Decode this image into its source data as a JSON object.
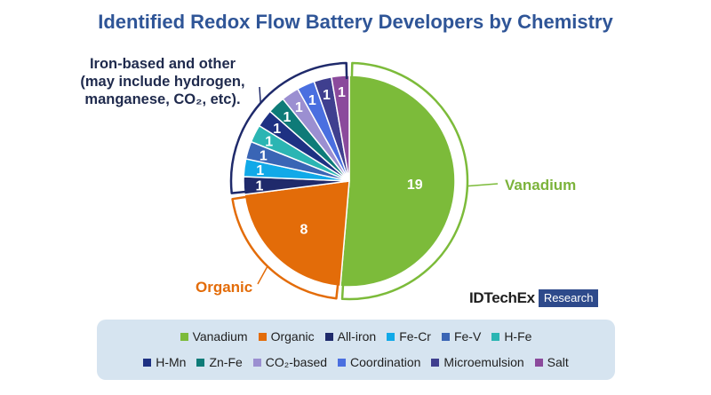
{
  "title": "Identified Redox Flow Battery Developers by Chemistry",
  "brand": {
    "name": "IDTechEx",
    "tag": "Research"
  },
  "groups": {
    "vanadium": "Vanadium",
    "organic": "Organic",
    "iron": [
      "Iron-based and other",
      "(may include hydrogen,",
      "manganese, CO₂, etc)."
    ]
  },
  "chart_data": {
    "type": "pie",
    "title": "Identified Redox Flow Battery Developers by Chemistry",
    "slices": [
      {
        "label": "Vanadium",
        "value": 19,
        "color": "#7cbb3a",
        "group": "vanadium"
      },
      {
        "label": "Organic",
        "value": 8,
        "color": "#e36c09",
        "group": "organic"
      },
      {
        "label": "All-iron",
        "value": 1,
        "color": "#1f2a6b",
        "group": "iron"
      },
      {
        "label": "Fe-Cr",
        "value": 1,
        "color": "#11a9e8",
        "group": "iron"
      },
      {
        "label": "Fe-V",
        "value": 1,
        "color": "#3a65b5",
        "group": "iron"
      },
      {
        "label": "H-Fe",
        "value": 1,
        "color": "#2bb5b3",
        "group": "iron"
      },
      {
        "label": "H-Mn",
        "value": 1,
        "color": "#1e3183",
        "group": "iron"
      },
      {
        "label": "Zn-Fe",
        "value": 1,
        "color": "#0e7b78",
        "group": "iron"
      },
      {
        "label": "CO₂-based",
        "value": 1,
        "color": "#9b8fd1",
        "group": "iron"
      },
      {
        "label": "Coordination",
        "value": 1,
        "color": "#4a6fe0",
        "group": "iron"
      },
      {
        "label": "Microemulsion",
        "value": 1,
        "color": "#3f3f8f",
        "group": "iron"
      },
      {
        "label": "Salt",
        "value": 1,
        "color": "#8b4a9c",
        "group": "iron"
      }
    ],
    "legend": {
      "placement": "bottom",
      "row1": [
        "Vanadium",
        "Organic",
        "All-iron",
        "Fe-Cr",
        "Fe-V",
        "H-Fe"
      ],
      "row2": [
        "H-Mn",
        "Zn-Fe",
        "CO₂-based",
        "Coordination",
        "Microemulsion",
        "Salt"
      ]
    },
    "group_colors": {
      "vanadium": "#7cbb3a",
      "organic": "#e36c09",
      "iron": "#1f2a6b"
    }
  }
}
